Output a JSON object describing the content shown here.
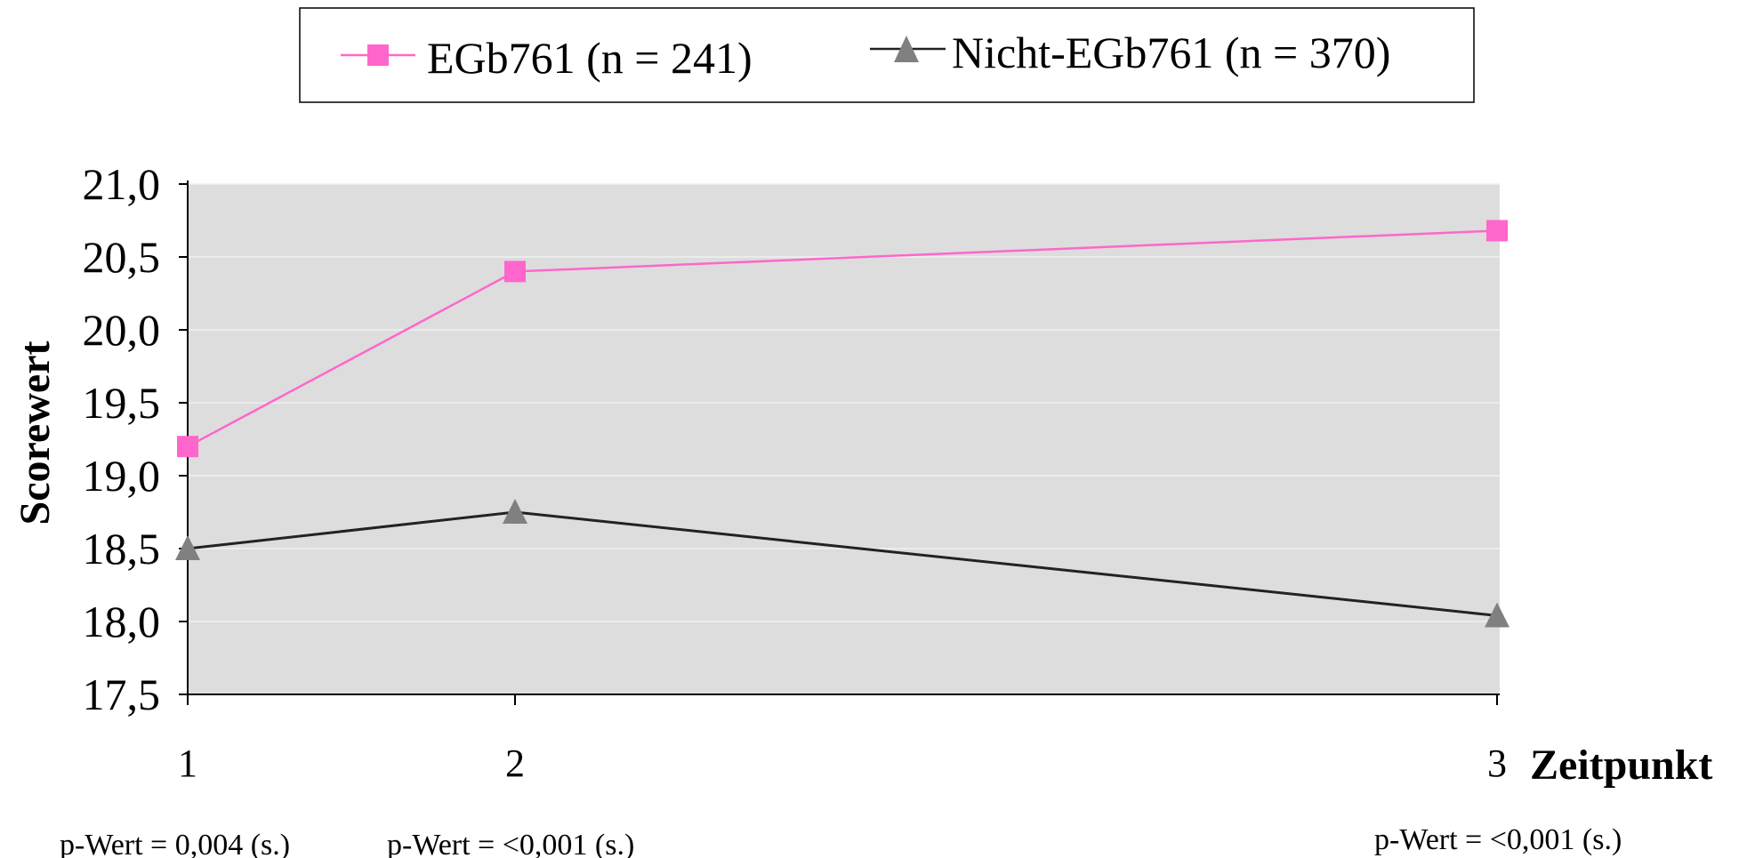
{
  "chart_data": {
    "type": "line",
    "categories": [
      "1",
      "2",
      "3"
    ],
    "series": [
      {
        "name": "EGb761 (n = 241)",
        "values": [
          19.2,
          20.4,
          20.68
        ],
        "color": "#FF66CC",
        "marker": "square"
      },
      {
        "name": "Nicht-EGb761 (n = 370)",
        "values": [
          18.5,
          18.75,
          18.04
        ],
        "color": "#222222",
        "marker": "triangle",
        "marker_color": "#808080"
      }
    ],
    "xlabel": "Zeitpunkt",
    "ylabel": "Scorewert",
    "ylim": [
      17.5,
      21.0
    ],
    "yticks": [
      "17,5",
      "18,0",
      "18,5",
      "19,0",
      "19,5",
      "20,0",
      "20,5",
      "21,0"
    ],
    "legend_position": "top",
    "grid": true,
    "plot_background": "#DDDDDD",
    "annotations": [
      "p-Wert = 0,004  (s.)",
      "p-Wert = <0,001  (s.)",
      "p-Wert = <0,001  (s.)"
    ]
  }
}
